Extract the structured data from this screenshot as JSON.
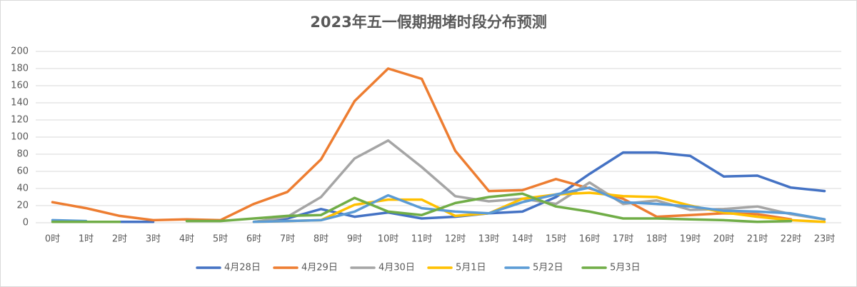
{
  "chart_data": {
    "type": "line",
    "title": "2023年五一假期拥堵时段分布预测",
    "categories": [
      "0时",
      "1时",
      "2时",
      "3时",
      "4时",
      "5时",
      "6时",
      "7时",
      "8时",
      "9时",
      "10时",
      "11时",
      "12时",
      "13时",
      "14时",
      "15时",
      "16时",
      "17时",
      "18时",
      "19时",
      "20时",
      "21时",
      "22时",
      "23时"
    ],
    "series": [
      {
        "name": "4月28日",
        "color": "#4472c4",
        "values": [
          null,
          null,
          1,
          1,
          null,
          null,
          1,
          5,
          16,
          7,
          12,
          5,
          7,
          11,
          13,
          30,
          57,
          82,
          82,
          78,
          54,
          55,
          41,
          37
        ]
      },
      {
        "name": "4月29日",
        "color": "#ed7d31",
        "values": [
          24,
          17,
          8,
          3,
          4,
          3,
          22,
          36,
          74,
          142,
          180,
          168,
          84,
          37,
          38,
          51,
          40,
          28,
          7,
          9,
          11,
          10,
          4,
          null
        ]
      },
      {
        "name": "4月30日",
        "color": "#a5a5a5",
        "values": [
          null,
          null,
          null,
          null,
          null,
          null,
          1,
          7,
          30,
          75,
          96,
          65,
          31,
          25,
          28,
          22,
          47,
          22,
          26,
          15,
          16,
          19,
          10,
          4
        ]
      },
      {
        "name": "5月1日",
        "color": "#ffc000",
        "values": [
          null,
          null,
          null,
          null,
          null,
          null,
          1,
          2,
          3,
          21,
          27,
          27,
          8,
          11,
          28,
          33,
          35,
          31,
          30,
          20,
          12,
          7,
          3,
          1
        ]
      },
      {
        "name": "5月2日",
        "color": "#5b9bd5",
        "values": [
          3,
          2,
          null,
          null,
          null,
          null,
          1,
          2,
          3,
          13,
          32,
          17,
          13,
          11,
          24,
          33,
          41,
          24,
          22,
          19,
          14,
          13,
          11,
          4
        ]
      },
      {
        "name": "5月3日",
        "color": "#70ad47",
        "values": [
          1,
          1,
          1,
          null,
          2,
          2,
          5,
          8,
          9,
          29,
          13,
          9,
          23,
          30,
          34,
          19,
          13,
          5,
          5,
          4,
          3,
          1,
          2,
          null
        ]
      }
    ],
    "ylim": [
      0,
      200
    ],
    "yticks": [
      0,
      20,
      40,
      60,
      80,
      100,
      120,
      140,
      160,
      180,
      200
    ],
    "grid": true,
    "legend": "bottom"
  }
}
